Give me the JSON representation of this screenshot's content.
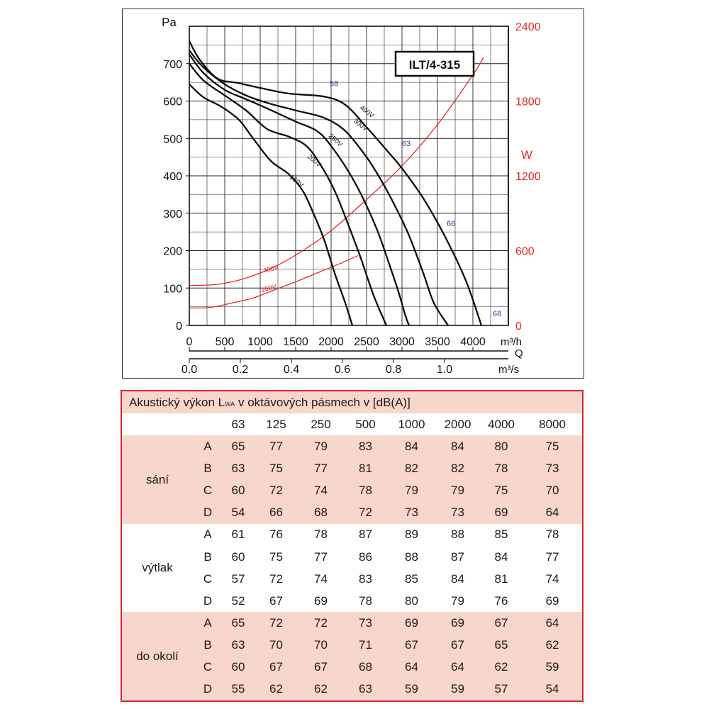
{
  "chart_data": {
    "type": "line",
    "title": "ILT/4-315",
    "y_left": {
      "label": "Pa",
      "range": [
        0,
        800
      ],
      "ticks": [
        0,
        100,
        200,
        300,
        400,
        500,
        600,
        700
      ]
    },
    "y_right": {
      "label": "W",
      "range": [
        0,
        2400
      ],
      "ticks": [
        0,
        600,
        1200,
        1800,
        2400
      ],
      "color": "#e8272a"
    },
    "x_top": {
      "unit": "m³/h",
      "range": [
        0,
        4500
      ],
      "ticks": [
        0,
        500,
        1000,
        1500,
        2000,
        2500,
        3000,
        3500,
        4000
      ]
    },
    "x_label": "Q",
    "x_bottom": {
      "unit": "m³/s",
      "ticks": [
        "0.0",
        "0.2",
        "0.4",
        "0.6",
        "0.8",
        "1.0"
      ],
      "tick_values": [
        0,
        0.2,
        0.4,
        0.6,
        0.8,
        1.0
      ]
    },
    "grid": true,
    "pressure_series": [
      {
        "name": "400V",
        "points": [
          [
            0,
            760
          ],
          [
            150,
            710
          ],
          [
            400,
            660
          ],
          [
            700,
            648
          ],
          [
            1000,
            635
          ],
          [
            1400,
            620
          ],
          [
            1900,
            612
          ],
          [
            2200,
            590
          ],
          [
            2500,
            530
          ],
          [
            2800,
            465
          ],
          [
            3000,
            420
          ],
          [
            3300,
            340
          ],
          [
            3600,
            240
          ],
          [
            3900,
            120
          ],
          [
            4120,
            0
          ]
        ]
      },
      {
        "name": "300V",
        "points": [
          [
            0,
            735
          ],
          [
            200,
            690
          ],
          [
            500,
            645
          ],
          [
            800,
            615
          ],
          [
            1100,
            595
          ],
          [
            1500,
            575
          ],
          [
            1900,
            555
          ],
          [
            2200,
            520
          ],
          [
            2500,
            450
          ],
          [
            2700,
            390
          ],
          [
            2900,
            320
          ],
          [
            3100,
            240
          ],
          [
            3300,
            140
          ],
          [
            3450,
            60
          ],
          [
            3650,
            0
          ]
        ]
      },
      {
        "name": "250V",
        "points": [
          [
            0,
            725
          ],
          [
            200,
            675
          ],
          [
            500,
            630
          ],
          [
            800,
            605
          ],
          [
            1100,
            580
          ],
          [
            1500,
            545
          ],
          [
            1800,
            520
          ],
          [
            2000,
            480
          ],
          [
            2250,
            410
          ],
          [
            2450,
            340
          ],
          [
            2650,
            255
          ],
          [
            2800,
            175
          ],
          [
            2950,
            90
          ],
          [
            3050,
            25
          ],
          [
            3100,
            0
          ]
        ]
      },
      {
        "name": "200V",
        "points": [
          [
            0,
            700
          ],
          [
            200,
            655
          ],
          [
            500,
            615
          ],
          [
            800,
            575
          ],
          [
            1100,
            525
          ],
          [
            1400,
            505
          ],
          [
            1650,
            480
          ],
          [
            1850,
            430
          ],
          [
            2050,
            360
          ],
          [
            2200,
            290
          ],
          [
            2400,
            190
          ],
          [
            2600,
            80
          ],
          [
            2780,
            0
          ]
        ]
      },
      {
        "name": "160V",
        "points": [
          [
            0,
            645
          ],
          [
            200,
            610
          ],
          [
            450,
            585
          ],
          [
            700,
            550
          ],
          [
            900,
            500
          ],
          [
            1150,
            440
          ],
          [
            1400,
            405
          ],
          [
            1600,
            360
          ],
          [
            1750,
            300
          ],
          [
            1900,
            230
          ],
          [
            2050,
            140
          ],
          [
            2200,
            60
          ],
          [
            2300,
            0
          ]
        ]
      }
    ],
    "power_series": [
      {
        "name": "400V",
        "points": [
          [
            0,
            320
          ],
          [
            400,
            330
          ],
          [
            800,
            380
          ],
          [
            1200,
            470
          ],
          [
            1600,
            600
          ],
          [
            2000,
            760
          ],
          [
            2500,
            1010
          ],
          [
            3000,
            1280
          ],
          [
            3500,
            1610
          ],
          [
            4000,
            2010
          ],
          [
            4150,
            2150
          ]
        ]
      },
      {
        "name": "160V",
        "points": [
          [
            0,
            140
          ],
          [
            300,
            145
          ],
          [
            600,
            180
          ],
          [
            900,
            220
          ],
          [
            1200,
            285
          ],
          [
            1500,
            350
          ],
          [
            1800,
            420
          ],
          [
            2100,
            490
          ],
          [
            2380,
            560
          ]
        ]
      }
    ],
    "noise_labels": [
      {
        "text": "58",
        "x": 1980,
        "y": 640
      },
      {
        "text": "63",
        "x": 3000,
        "y": 480
      },
      {
        "text": "66",
        "x": 3630,
        "y": 265
      },
      {
        "text": "68",
        "x": 4280,
        "y": 25
      }
    ]
  },
  "table": {
    "title_prefix": "Akustický výkon L",
    "title_sub": "WA",
    "title_suffix": " v oktávových pásmech v [dB(A)]",
    "bands": [
      "63",
      "125",
      "250",
      "500",
      "1000",
      "2000",
      "4000",
      "8000"
    ],
    "groups": [
      {
        "name": "sání",
        "rows": [
          {
            "label": "A",
            "values": [
              "65",
              "77",
              "79",
              "83",
              "84",
              "84",
              "80",
              "75"
            ]
          },
          {
            "label": "B",
            "values": [
              "63",
              "75",
              "77",
              "81",
              "82",
              "82",
              "78",
              "73"
            ]
          },
          {
            "label": "C",
            "values": [
              "60",
              "72",
              "74",
              "78",
              "79",
              "79",
              "75",
              "70"
            ]
          },
          {
            "label": "D",
            "values": [
              "54",
              "66",
              "68",
              "72",
              "73",
              "73",
              "69",
              "64"
            ]
          }
        ]
      },
      {
        "name": "výtlak",
        "rows": [
          {
            "label": "A",
            "values": [
              "61",
              "76",
              "78",
              "87",
              "89",
              "88",
              "85",
              "78"
            ]
          },
          {
            "label": "B",
            "values": [
              "60",
              "75",
              "77",
              "86",
              "88",
              "87",
              "84",
              "77"
            ]
          },
          {
            "label": "C",
            "values": [
              "57",
              "72",
              "74",
              "83",
              "85",
              "84",
              "81",
              "74"
            ]
          },
          {
            "label": "D",
            "values": [
              "52",
              "67",
              "69",
              "78",
              "80",
              "79",
              "76",
              "69"
            ]
          }
        ]
      },
      {
        "name": "do okolí",
        "rows": [
          {
            "label": "A",
            "values": [
              "65",
              "72",
              "72",
              "73",
              "69",
              "69",
              "67",
              "64"
            ]
          },
          {
            "label": "B",
            "values": [
              "63",
              "70",
              "70",
              "71",
              "67",
              "67",
              "65",
              "62"
            ]
          },
          {
            "label": "C",
            "values": [
              "60",
              "67",
              "67",
              "68",
              "64",
              "64",
              "62",
              "59"
            ]
          },
          {
            "label": "D",
            "values": [
              "55",
              "62",
              "62",
              "63",
              "59",
              "59",
              "57",
              "54"
            ]
          }
        ]
      }
    ]
  }
}
